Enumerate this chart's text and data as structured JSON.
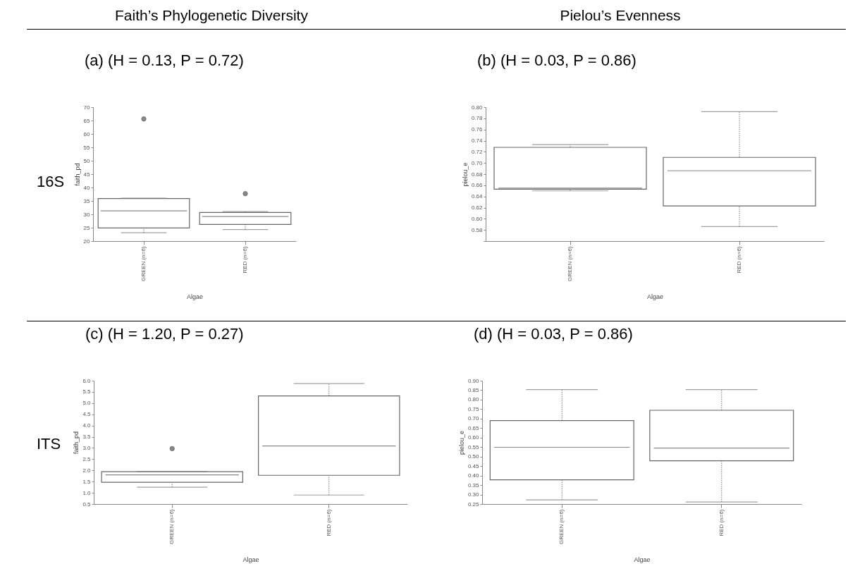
{
  "chart_data": [
    {
      "type": "box",
      "title": "(a) (H = 0.13, P = 0.72)",
      "xlabel": "Algae",
      "ylabel": "faith_pd",
      "categories": [
        "GREEN (n=6)",
        "RED (n=6)"
      ],
      "boxes": [
        {
          "low": 23.1,
          "q1": 24.9,
          "median": 31.3,
          "q3": 35.9,
          "high": 36.0,
          "outliers": [
            65.6
          ]
        },
        {
          "low": 24.3,
          "q1": 26.2,
          "median": 29.2,
          "q3": 30.7,
          "high": 31.0,
          "outliers": [
            37.7
          ]
        }
      ],
      "ylim": [
        20,
        70
      ],
      "yticks": [
        20,
        25,
        30,
        35,
        40,
        45,
        50,
        55,
        60,
        65,
        70
      ],
      "annotations": [
        "Faith’s Phylogenetic Diversity",
        "16S"
      ]
    },
    {
      "type": "box",
      "title": "(b) (H = 0.03, P = 0.86)",
      "xlabel": "Algae",
      "ylabel": "pielou_e",
      "categories": [
        "GREEN (n=6)",
        "RED (n=6)"
      ],
      "boxes": [
        {
          "low": 0.65,
          "q1": 0.653,
          "median": 0.655,
          "q3": 0.728,
          "high": 0.733
        },
        {
          "low": 0.586,
          "q1": 0.623,
          "median": 0.686,
          "q3": 0.71,
          "high": 0.792
        }
      ],
      "ylim": [
        0.56,
        0.8
      ],
      "yticks": [
        {
          "value": 0.56,
          "label": null
        },
        0.58,
        {
          "value": 0.6,
          "label": "0.60"
        },
        0.62,
        0.64,
        0.66,
        0.68,
        {
          "value": 0.7,
          "label": "0.70"
        },
        0.72,
        0.74,
        0.76,
        0.78,
        {
          "value": 0.8,
          "label": "0.80"
        }
      ],
      "annotations": [
        "Pielou’s Evenness"
      ]
    },
    {
      "type": "box",
      "title": "(c) (H = 1.20, P = 0.27)",
      "xlabel": "Algae",
      "ylabel": "faith_pd",
      "categories": [
        "GREEN (n=6)",
        "RED (n=6)"
      ],
      "boxes": [
        {
          "low": 1.25,
          "q1": 1.47,
          "median": 1.8,
          "q3": 1.94,
          "high": 1.95,
          "outliers": [
            2.97
          ]
        },
        {
          "low": 0.9,
          "q1": 1.78,
          "median": 3.09,
          "q3": 5.32,
          "high": 5.87
        }
      ],
      "ylim": [
        0.5,
        6.0
      ],
      "yticks": [
        0.5,
        {
          "value": 1,
          "label": "1.0"
        },
        1.5,
        {
          "value": 2,
          "label": "2.0"
        },
        2.5,
        {
          "value": 3,
          "label": "3.0"
        },
        3.5,
        {
          "value": 4,
          "label": "4.0"
        },
        4.5,
        {
          "value": 5,
          "label": "5.0"
        },
        5.5,
        {
          "value": 6,
          "label": "6.0"
        }
      ],
      "annotations": [
        "ITS"
      ]
    },
    {
      "type": "box",
      "title": "(d) (H = 0.03, P = 0.86)",
      "xlabel": "Algae",
      "ylabel": "pielou_e",
      "categories": [
        "GREEN (n=6)",
        "RED (n=6)"
      ],
      "boxes": [
        {
          "low": 0.272,
          "q1": 0.378,
          "median": 0.549,
          "q3": 0.69,
          "high": 0.853
        },
        {
          "low": 0.261,
          "q1": 0.478,
          "median": 0.545,
          "q3": 0.744,
          "high": 0.853
        }
      ],
      "ylim": [
        0.25,
        0.9
      ],
      "yticks": [
        0.25,
        {
          "value": 0.3,
          "label": "0.30"
        },
        0.35,
        {
          "value": 0.4,
          "label": "0.40"
        },
        0.45,
        {
          "value": 0.5,
          "label": "0.50"
        },
        0.55,
        {
          "value": 0.6,
          "label": "0.60"
        },
        0.65,
        {
          "value": 0.7,
          "label": "0.70"
        },
        0.75,
        {
          "value": 0.8,
          "label": "0.80"
        },
        0.85,
        {
          "value": 0.9,
          "label": "0.90"
        }
      ]
    }
  ]
}
